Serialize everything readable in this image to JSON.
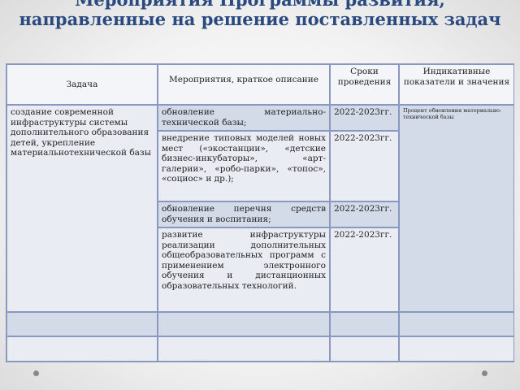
{
  "title": "Мероприятия Программы развития, направленные на решение поставленных задач",
  "table": {
    "headers": [
      "Задача",
      "Мероприятия, краткое описание",
      "Сроки проведения",
      "Индикативные показатели и значения"
    ],
    "task": "создание современной инфраструктуры системы дополнительного образования детей, укрепление материальнотехнической базы",
    "rows": [
      {
        "activity": "обновление материально-технической базы;",
        "term": "2022-2023гг."
      },
      {
        "activity": "внедрение типовых моделей новых мест («экостанции», «детские бизнес-инкубаторы», «арт-галерии», «робо-парки», «топос», «социос» и др.);",
        "term": "2022-2023гг."
      },
      {
        "activity": "обновление перечня средств обучения и воспитания;",
        "term": "2022-2023гг."
      },
      {
        "activity": "развитие инфраструктуры реализации дополнительных общеобразовательных программ с применением электронного обучения и дистанционных образовательных технологий.",
        "term": "2022-2023гг."
      }
    ],
    "indicator": "Процент обновления материально-технической базы"
  }
}
